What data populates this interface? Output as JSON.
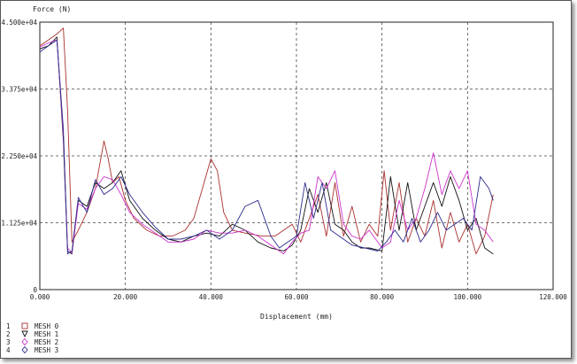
{
  "chart_data": {
    "type": "line",
    "ylabel": "Force (N)",
    "xlabel": "Displacement (mm)",
    "xlim": [
      0,
      120000
    ],
    "ylim": [
      0,
      45000
    ],
    "grid": true,
    "x_ticks": [
      "0.000",
      "20.000",
      "40.000",
      "60.000",
      "80.000",
      "100.000",
      "120.000"
    ],
    "y_ticks": [
      "0",
      "1.125e+04",
      "2.250e+04",
      "3.375e+04",
      "4.500e+04"
    ],
    "legend": [
      {
        "num": "1",
        "name": "MESH 0",
        "color": "#aa3030",
        "marker": "square"
      },
      {
        "num": "2",
        "name": "MESH 1",
        "color": "#111111",
        "marker": "triangle-down"
      },
      {
        "num": "3",
        "name": "MESH 2",
        "color": "#cc33cc",
        "marker": "diamond"
      },
      {
        "num": "4",
        "name": "MESH 3",
        "color": "#2b2b8c",
        "marker": "diamond"
      }
    ],
    "series": [
      {
        "name": "MESH 0",
        "color": "#aa3030",
        "x": [
          0,
          2000,
          4000,
          5500,
          6500,
          7500,
          9000,
          11000,
          13000,
          15000,
          16000,
          17000,
          18500,
          20000,
          22000,
          25000,
          28000,
          31000,
          34000,
          36000,
          38000,
          40000,
          41500,
          43000,
          45000,
          48000,
          52000,
          55000,
          57000,
          59000,
          61000,
          63000,
          65000,
          67000,
          69000,
          71000,
          73000,
          75000,
          77000,
          79000,
          80500,
          82000,
          84000,
          86000,
          88000,
          90000,
          92000,
          94000,
          96000,
          98000,
          100000,
          102000,
          104000,
          106000
        ],
        "y": [
          41000,
          42000,
          43000,
          44000,
          30000,
          8000,
          10000,
          13000,
          17000,
          25000,
          22000,
          18000,
          19000,
          15000,
          12000,
          10000,
          9000,
          9000,
          10000,
          12000,
          17000,
          22000,
          20000,
          13000,
          10000,
          9500,
          9000,
          9000,
          10000,
          11000,
          8000,
          12000,
          16000,
          9000,
          18000,
          9000,
          14000,
          8000,
          11000,
          9000,
          20000,
          10000,
          18000,
          8000,
          12000,
          9000,
          15000,
          7000,
          13000,
          8000,
          11000,
          6000,
          9000,
          16000
        ]
      },
      {
        "name": "MESH 1",
        "color": "#111111",
        "x": [
          0,
          2000,
          4000,
          5500,
          6500,
          7500,
          9000,
          11000,
          13000,
          15000,
          17000,
          19000,
          21000,
          24000,
          27000,
          30000,
          33000,
          36000,
          39000,
          42000,
          45000,
          48000,
          51000,
          54000,
          57000,
          59000,
          61000,
          63000,
          65000,
          67000,
          69000,
          71000,
          73000,
          75000,
          77000,
          80000,
          82000,
          84000,
          86000,
          88000,
          90000,
          92000,
          94000,
          96000,
          98000,
          100000,
          102000,
          104000,
          106000
        ],
        "y": [
          40500,
          41000,
          42500,
          25000,
          6500,
          6000,
          15000,
          14000,
          18000,
          17000,
          18000,
          20000,
          15000,
          12000,
          10000,
          8500,
          8000,
          9000,
          9500,
          9000,
          11000,
          10000,
          8000,
          7000,
          6500,
          7500,
          10000,
          17000,
          13000,
          18000,
          11000,
          10000,
          8000,
          7000,
          7000,
          6500,
          19000,
          10000,
          18000,
          10000,
          14000,
          18000,
          14000,
          19000,
          15000,
          10000,
          12000,
          7000,
          6000
        ]
      },
      {
        "name": "MESH 2",
        "color": "#cc33cc",
        "x": [
          0,
          2000,
          4000,
          5500,
          6500,
          7500,
          9000,
          11000,
          13000,
          15000,
          17000,
          19000,
          21000,
          24000,
          27000,
          30000,
          33000,
          36000,
          39000,
          42000,
          45000,
          48000,
          51000,
          54000,
          57000,
          59000,
          61000,
          63000,
          65000,
          67000,
          69000,
          71000,
          73000,
          75000,
          77000,
          80000,
          82000,
          84000,
          86000,
          88000,
          90000,
          92000,
          94000,
          96000,
          98000,
          100000,
          102000,
          104000,
          106000
        ],
        "y": [
          40800,
          41500,
          42000,
          26000,
          7000,
          6200,
          14500,
          13500,
          17000,
          19000,
          18500,
          16000,
          13000,
          11000,
          9500,
          8000,
          8000,
          8500,
          10000,
          9500,
          9500,
          10000,
          9000,
          7500,
          6000,
          8000,
          9500,
          10000,
          19000,
          17000,
          20000,
          11000,
          9000,
          8500,
          10000,
          7000,
          8000,
          15000,
          10000,
          12000,
          17000,
          23000,
          16000,
          20000,
          17000,
          20000,
          11000,
          10000,
          8000
        ]
      },
      {
        "name": "MESH 3",
        "color": "#2b2b8c",
        "x": [
          0,
          2000,
          4000,
          5500,
          6500,
          7500,
          9000,
          11000,
          13000,
          15000,
          17000,
          19000,
          21000,
          24000,
          27000,
          30000,
          33000,
          36000,
          39000,
          42000,
          45000,
          48000,
          51000,
          54000,
          56000,
          58000,
          60000,
          62000,
          64000,
          66000,
          68000,
          70000,
          73000,
          76000,
          79000,
          81000,
          83000,
          85000,
          87000,
          89000,
          91000,
          93000,
          95000,
          97000,
          99000,
          101000,
          103000,
          105000,
          106000
        ],
        "y": [
          40000,
          41000,
          42000,
          27000,
          6000,
          6500,
          15500,
          13000,
          18500,
          16000,
          17000,
          19000,
          16000,
          13000,
          10500,
          8500,
          8500,
          9000,
          10000,
          8500,
          10000,
          14000,
          15000,
          9000,
          7000,
          8000,
          9000,
          18000,
          12000,
          18000,
          10000,
          9000,
          7500,
          7000,
          6500,
          8000,
          10000,
          8000,
          12000,
          8000,
          10000,
          13000,
          10000,
          11000,
          12000,
          10000,
          19000,
          17000,
          15000
        ]
      }
    ]
  }
}
